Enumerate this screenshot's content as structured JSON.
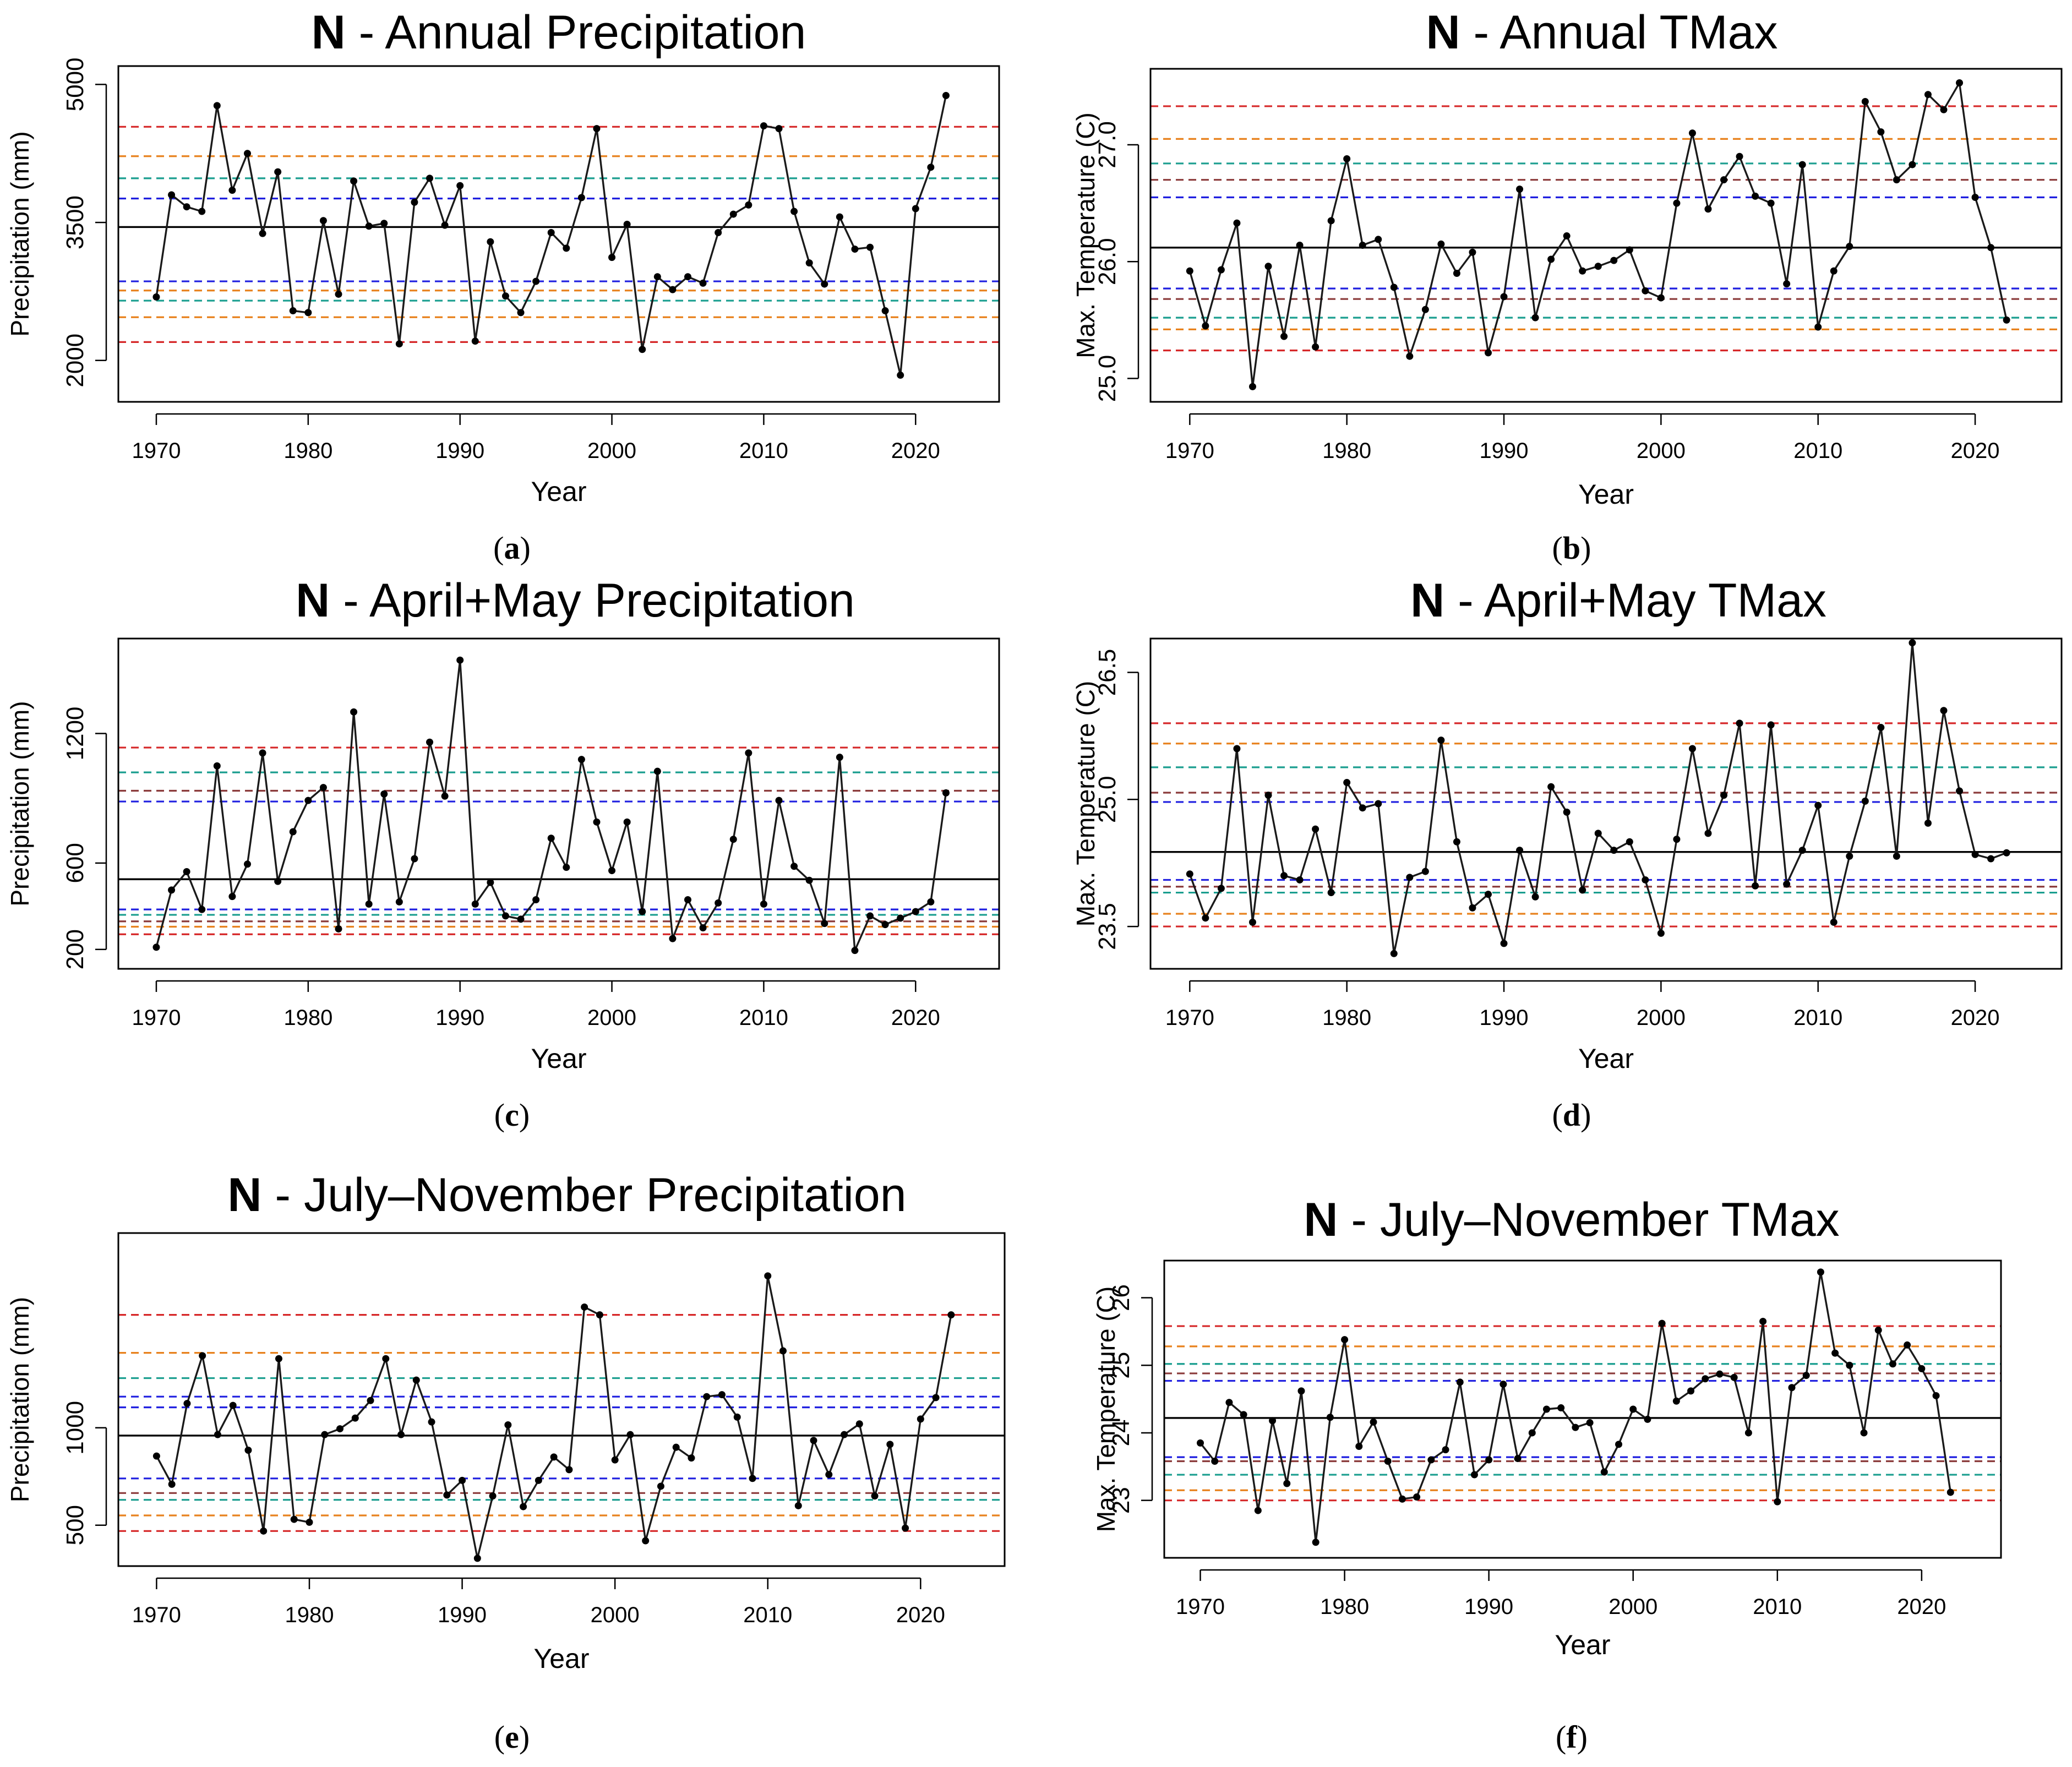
{
  "chart_data": [
    {
      "type": "line",
      "panel": "(a)",
      "title_bold": "N",
      "title_rest": " - Annual Precipitation",
      "xlabel": "Year",
      "ylabel": "Precipitation (mm)",
      "xlim": [
        1967.5,
        2025.5
      ],
      "ylim": [
        1550,
        5200
      ],
      "xticks": [
        1970,
        1980,
        1990,
        2000,
        2010,
        2020
      ],
      "xtick_labels": [
        "1970",
        "1980",
        "1990",
        "2000",
        "2010",
        "2020"
      ],
      "yticks": [
        2000,
        3500,
        5000
      ],
      "ytick_labels": [
        "2000",
        "3500",
        "5000"
      ],
      "x": [
        1970,
        1971,
        1972,
        1973,
        1974,
        1975,
        1976,
        1977,
        1978,
        1979,
        1980,
        1981,
        1982,
        1983,
        1984,
        1985,
        1986,
        1987,
        1988,
        1989,
        1990,
        1991,
        1992,
        1993,
        1994,
        1995,
        1996,
        1997,
        1998,
        1999,
        2000,
        2001,
        2002,
        2003,
        2004,
        2005,
        2006,
        2007,
        2008,
        2009,
        2010,
        2011,
        2012,
        2013,
        2014,
        2015,
        2016,
        2017,
        2018,
        2019,
        2020,
        2021,
        2022
      ],
      "values": [
        2690,
        3800,
        3670,
        3620,
        4770,
        3850,
        4250,
        3380,
        4050,
        2540,
        2520,
        3520,
        2720,
        3950,
        3460,
        3490,
        2180,
        3720,
        3980,
        3470,
        3900,
        2210,
        3290,
        2700,
        2520,
        2860,
        3390,
        3220,
        3770,
        4520,
        3120,
        3480,
        2120,
        2910,
        2770,
        2910,
        2840,
        3390,
        3590,
        3690,
        4550,
        4520,
        3620,
        3060,
        2830,
        3560,
        3210,
        3230,
        2540,
        1840,
        3650,
        4100,
        4880
      ],
      "ref_lines": [
        {
          "value": 3450,
          "color": "#000000",
          "dashed": false
        },
        {
          "value": 4540,
          "color": "#d62728",
          "dashed": true
        },
        {
          "value": 4220,
          "color": "#e8821e",
          "dashed": true
        },
        {
          "value": 3980,
          "color": "#1a9e8f",
          "dashed": true
        },
        {
          "value": 3760,
          "color": "#1f1fe0",
          "dashed": true
        },
        {
          "value": 2860,
          "color": "#1f1fe0",
          "dashed": true
        },
        {
          "value": 2760,
          "color": "#e8821e",
          "dashed": true
        },
        {
          "value": 2650,
          "color": "#1a9e8f",
          "dashed": true
        },
        {
          "value": 2470,
          "color": "#e8821e",
          "dashed": true
        },
        {
          "value": 2200,
          "color": "#d62728",
          "dashed": true
        }
      ]
    },
    {
      "type": "line",
      "panel": "(b)",
      "title_bold": "N",
      "title_rest": " - Annual TMax",
      "xlabel": "Year",
      "ylabel": "Max. Temperature (C)",
      "xlim": [
        1967.5,
        2025.5
      ],
      "ylim": [
        24.8,
        27.65
      ],
      "xticks": [
        1970,
        1980,
        1990,
        2000,
        2010,
        2020
      ],
      "xtick_labels": [
        "1970",
        "1980",
        "1990",
        "2000",
        "2010",
        "2020"
      ],
      "yticks": [
        25.0,
        26.0,
        27.0
      ],
      "ytick_labels": [
        "25.0",
        "26.0",
        "27.0"
      ],
      "x": [
        1970,
        1971,
        1972,
        1973,
        1974,
        1975,
        1976,
        1977,
        1978,
        1979,
        1980,
        1981,
        1982,
        1983,
        1984,
        1985,
        1986,
        1987,
        1988,
        1989,
        1990,
        1991,
        1992,
        1993,
        1994,
        1995,
        1996,
        1997,
        1998,
        1999,
        2000,
        2001,
        2002,
        2003,
        2004,
        2005,
        2006,
        2007,
        2008,
        2009,
        2010,
        2011,
        2012,
        2013,
        2014,
        2015,
        2016,
        2017,
        2018,
        2019,
        2020,
        2021,
        2022
      ],
      "values": [
        25.92,
        25.45,
        25.93,
        26.33,
        24.93,
        25.96,
        25.36,
        26.14,
        25.27,
        26.35,
        26.88,
        26.14,
        26.19,
        25.78,
        25.19,
        25.59,
        26.15,
        25.9,
        26.08,
        25.22,
        25.7,
        26.62,
        25.52,
        26.02,
        26.22,
        25.92,
        25.96,
        26.01,
        26.1,
        25.75,
        25.69,
        26.5,
        27.1,
        26.45,
        26.7,
        26.9,
        26.56,
        26.5,
        25.81,
        26.83,
        25.44,
        25.92,
        26.13,
        27.37,
        27.11,
        26.7,
        26.83,
        27.43,
        27.3,
        27.53,
        26.55,
        26.12,
        25.5
      ],
      "ref_lines": [
        {
          "value": 26.12,
          "color": "#000000",
          "dashed": false
        },
        {
          "value": 27.33,
          "color": "#d62728",
          "dashed": true
        },
        {
          "value": 27.05,
          "color": "#e8821e",
          "dashed": true
        },
        {
          "value": 26.84,
          "color": "#1a9e8f",
          "dashed": true
        },
        {
          "value": 26.7,
          "color": "#8b3a3a",
          "dashed": true
        },
        {
          "value": 26.55,
          "color": "#1f1fe0",
          "dashed": true
        },
        {
          "value": 25.77,
          "color": "#1f1fe0",
          "dashed": true
        },
        {
          "value": 25.68,
          "color": "#8b3a3a",
          "dashed": true
        },
        {
          "value": 25.52,
          "color": "#1a9e8f",
          "dashed": true
        },
        {
          "value": 25.42,
          "color": "#e8821e",
          "dashed": true
        },
        {
          "value": 25.24,
          "color": "#d62728",
          "dashed": true
        }
      ]
    },
    {
      "type": "line",
      "panel": "(c)",
      "title_bold": "N",
      "title_rest": " - April+May Precipitation",
      "xlabel": "Year",
      "ylabel": "Precipitation (mm)",
      "xlim": [
        1967.5,
        2025.5
      ],
      "ylim": [
        110,
        1640
      ],
      "xticks": [
        1970,
        1980,
        1990,
        2000,
        2010,
        2020
      ],
      "xtick_labels": [
        "1970",
        "1980",
        "1990",
        "2000",
        "2010",
        "2020"
      ],
      "yticks": [
        200,
        600,
        1200
      ],
      "ytick_labels": [
        "200",
        "600",
        "1200"
      ],
      "x": [
        1970,
        1971,
        1972,
        1973,
        1974,
        1975,
        1976,
        1977,
        1978,
        1979,
        1980,
        1981,
        1982,
        1983,
        1984,
        1985,
        1986,
        1987,
        1988,
        1989,
        1990,
        1991,
        1992,
        1993,
        1994,
        1995,
        1996,
        1997,
        1998,
        1999,
        2000,
        2001,
        2002,
        2003,
        2004,
        2005,
        2006,
        2007,
        2008,
        2009,
        2010,
        2011,
        2012,
        2013,
        2014,
        2015,
        2016,
        2017,
        2018,
        2019,
        2020,
        2021,
        2022
      ],
      "values": [
        210,
        475,
        560,
        385,
        1050,
        445,
        595,
        1110,
        515,
        745,
        890,
        950,
        295,
        1300,
        410,
        920,
        420,
        620,
        1160,
        910,
        1540,
        410,
        510,
        355,
        340,
        430,
        715,
        580,
        1080,
        790,
        565,
        790,
        375,
        1025,
        250,
        430,
        300,
        415,
        710,
        1110,
        410,
        890,
        585,
        520,
        320,
        1090,
        195,
        355,
        315,
        345,
        375,
        420,
        925
      ],
      "ref_lines": [
        {
          "value": 525,
          "color": "#000000",
          "dashed": false
        },
        {
          "value": 1135,
          "color": "#d62728",
          "dashed": true
        },
        {
          "value": 1020,
          "color": "#1a9e8f",
          "dashed": true
        },
        {
          "value": 935,
          "color": "#8b3a3a",
          "dashed": true
        },
        {
          "value": 885,
          "color": "#1f1fe0",
          "dashed": true
        },
        {
          "value": 385,
          "color": "#1f1fe0",
          "dashed": true
        },
        {
          "value": 360,
          "color": "#1a9e8f",
          "dashed": true
        },
        {
          "value": 330,
          "color": "#8b3a3a",
          "dashed": true
        },
        {
          "value": 305,
          "color": "#e8821e",
          "dashed": true
        },
        {
          "value": 270,
          "color": "#d62728",
          "dashed": true
        }
      ]
    },
    {
      "type": "line",
      "panel": "(d)",
      "title_bold": "N",
      "title_rest": " - April+May TMax",
      "xlabel": "Year",
      "ylabel": "Max. Temperature (C)",
      "xlim": [
        1967.5,
        2025.5
      ],
      "ylim": [
        23.0,
        26.9
      ],
      "xticks": [
        1970,
        1980,
        1990,
        2000,
        2010,
        2020
      ],
      "xtick_labels": [
        "1970",
        "1980",
        "1990",
        "2000",
        "2010",
        "2020"
      ],
      "yticks": [
        23.5,
        25.0,
        26.5
      ],
      "ytick_labels": [
        "23.5",
        "25.0",
        "26.5"
      ],
      "x": [
        1970,
        1971,
        1972,
        1973,
        1974,
        1975,
        1976,
        1977,
        1978,
        1979,
        1980,
        1981,
        1982,
        1983,
        1984,
        1985,
        1986,
        1987,
        1988,
        1989,
        1990,
        1991,
        1992,
        1993,
        1994,
        1995,
        1996,
        1997,
        1998,
        1999,
        2000,
        2001,
        2002,
        2003,
        2004,
        2005,
        2006,
        2007,
        2008,
        2009,
        2010,
        2011,
        2012,
        2013,
        2014,
        2015,
        2016,
        2017,
        2018,
        2019,
        2020,
        2021,
        2022
      ],
      "values": [
        24.12,
        23.6,
        23.95,
        25.6,
        23.55,
        25.05,
        24.1,
        24.05,
        24.65,
        23.9,
        25.2,
        24.9,
        24.95,
        23.18,
        24.08,
        24.15,
        25.7,
        24.5,
        23.72,
        23.88,
        23.3,
        24.4,
        23.85,
        25.15,
        24.85,
        23.93,
        24.6,
        24.4,
        24.5,
        24.05,
        23.42,
        24.53,
        25.6,
        24.6,
        25.05,
        25.9,
        23.98,
        25.88,
        24.0,
        24.4,
        24.93,
        23.55,
        24.33,
        24.98,
        25.85,
        24.33,
        26.85,
        24.72,
        26.05,
        25.1,
        24.35,
        24.3,
        24.37
      ],
      "ref_lines": [
        {
          "value": 24.38,
          "color": "#000000",
          "dashed": false
        },
        {
          "value": 25.9,
          "color": "#d62728",
          "dashed": true
        },
        {
          "value": 25.66,
          "color": "#e8821e",
          "dashed": true
        },
        {
          "value": 25.38,
          "color": "#1a9e8f",
          "dashed": true
        },
        {
          "value": 25.08,
          "color": "#8b3a3a",
          "dashed": true
        },
        {
          "value": 24.97,
          "color": "#1f1fe0",
          "dashed": true
        },
        {
          "value": 24.05,
          "color": "#1f1fe0",
          "dashed": true
        },
        {
          "value": 23.97,
          "color": "#8b3a3a",
          "dashed": true
        },
        {
          "value": 23.9,
          "color": "#1a9e8f",
          "dashed": true
        },
        {
          "value": 23.65,
          "color": "#e8821e",
          "dashed": true
        },
        {
          "value": 23.5,
          "color": "#d62728",
          "dashed": true
        }
      ]
    },
    {
      "type": "line",
      "panel": "(e)",
      "title_bold": "N",
      "title_rest": " - July–November Precipitation",
      "xlabel": "Year",
      "ylabel": "Precipitation (mm)",
      "xlim": [
        1967.5,
        2025.5
      ],
      "ylim": [
        290,
        2000
      ],
      "xticks": [
        1970,
        1980,
        1990,
        2000,
        2010,
        2020
      ],
      "xtick_labels": [
        "1970",
        "1980",
        "1990",
        "2000",
        "2010",
        "2020"
      ],
      "yticks": [
        500,
        1000
      ],
      "ytick_labels": [
        "500",
        "1000"
      ],
      "x": [
        1970,
        1971,
        1972,
        1973,
        1974,
        1975,
        1976,
        1977,
        1978,
        1979,
        1980,
        1981,
        1982,
        1983,
        1984,
        1985,
        1986,
        1987,
        1988,
        1989,
        1990,
        1991,
        1992,
        1993,
        1994,
        1995,
        1996,
        1997,
        1998,
        1999,
        2000,
        2001,
        2002,
        2003,
        2004,
        2005,
        2006,
        2007,
        2008,
        2009,
        2010,
        2011,
        2012,
        2013,
        2014,
        2015,
        2016,
        2017,
        2018,
        2019,
        2020,
        2021,
        2022
      ],
      "values": [
        855,
        710,
        1125,
        1370,
        965,
        1115,
        885,
        470,
        1355,
        530,
        515,
        965,
        995,
        1050,
        1140,
        1355,
        965,
        1245,
        1030,
        655,
        730,
        330,
        650,
        1015,
        595,
        730,
        850,
        785,
        1620,
        1580,
        835,
        965,
        420,
        700,
        900,
        845,
        1160,
        1170,
        1055,
        740,
        1780,
        1395,
        600,
        935,
        760,
        965,
        1020,
        650,
        915,
        485,
        1045,
        1155,
        1580
      ],
      "ref_lines": [
        {
          "value": 960,
          "color": "#000000",
          "dashed": false
        },
        {
          "value": 1580,
          "color": "#d62728",
          "dashed": true
        },
        {
          "value": 1385,
          "color": "#e8821e",
          "dashed": true
        },
        {
          "value": 1255,
          "color": "#1a9e8f",
          "dashed": true
        },
        {
          "value": 1160,
          "color": "#1f1fe0",
          "dashed": true
        },
        {
          "value": 1105,
          "color": "#1f1fe0",
          "dashed": true
        },
        {
          "value": 740,
          "color": "#1f1fe0",
          "dashed": true
        },
        {
          "value": 665,
          "color": "#8b3a3a",
          "dashed": true
        },
        {
          "value": 630,
          "color": "#1a9e8f",
          "dashed": true
        },
        {
          "value": 550,
          "color": "#e8821e",
          "dashed": true
        },
        {
          "value": 470,
          "color": "#d62728",
          "dashed": true
        }
      ]
    },
    {
      "type": "line",
      "panel": "(f)",
      "title_bold": "N",
      "title_rest": " - July–November TMax",
      "xlabel": "Year",
      "ylabel": "Max. Temperature (C)",
      "xlim": [
        1967.5,
        2025.5
      ],
      "ylim": [
        22.15,
        26.55
      ],
      "xticks": [
        1970,
        1980,
        1990,
        2000,
        2010,
        2020
      ],
      "xtick_labels": [
        "1970",
        "1980",
        "1990",
        "2000",
        "2010",
        "2020"
      ],
      "yticks": [
        23,
        24,
        25,
        26
      ],
      "ytick_labels": [
        "23",
        "24",
        "25",
        "26"
      ],
      "x": [
        1970,
        1971,
        1972,
        1973,
        1974,
        1975,
        1976,
        1977,
        1978,
        1979,
        1980,
        1981,
        1982,
        1983,
        1984,
        1985,
        1986,
        1987,
        1988,
        1989,
        1990,
        1991,
        1992,
        1993,
        1994,
        1995,
        1996,
        1997,
        1998,
        1999,
        2000,
        2001,
        2002,
        2003,
        2004,
        2005,
        2006,
        2007,
        2008,
        2009,
        2010,
        2011,
        2012,
        2013,
        2014,
        2015,
        2016,
        2017,
        2018,
        2019,
        2020,
        2021,
        2022
      ],
      "values": [
        23.85,
        23.58,
        24.45,
        24.27,
        22.85,
        24.18,
        23.25,
        24.62,
        22.38,
        24.23,
        25.38,
        23.8,
        24.16,
        23.58,
        23.02,
        23.05,
        23.6,
        23.75,
        24.75,
        23.38,
        23.6,
        24.72,
        23.62,
        24.0,
        24.35,
        24.37,
        24.08,
        24.15,
        23.42,
        23.83,
        24.35,
        24.2,
        25.62,
        24.47,
        24.62,
        24.8,
        24.87,
        24.82,
        24.0,
        25.65,
        22.98,
        24.67,
        24.85,
        26.38,
        25.18,
        25.0,
        24.0,
        25.52,
        25.02,
        25.3,
        24.95,
        24.55,
        23.12
      ],
      "ref_lines": [
        {
          "value": 24.22,
          "color": "#000000",
          "dashed": false
        },
        {
          "value": 25.58,
          "color": "#d62728",
          "dashed": true
        },
        {
          "value": 25.28,
          "color": "#e8821e",
          "dashed": true
        },
        {
          "value": 25.02,
          "color": "#1a9e8f",
          "dashed": true
        },
        {
          "value": 24.88,
          "color": "#8b3a3a",
          "dashed": true
        },
        {
          "value": 24.77,
          "color": "#1f1fe0",
          "dashed": true
        },
        {
          "value": 23.64,
          "color": "#1f1fe0",
          "dashed": true
        },
        {
          "value": 23.58,
          "color": "#8b3a3a",
          "dashed": true
        },
        {
          "value": 23.38,
          "color": "#1a9e8f",
          "dashed": true
        },
        {
          "value": 23.15,
          "color": "#e8821e",
          "dashed": true
        },
        {
          "value": 23.0,
          "color": "#d62728",
          "dashed": true
        }
      ]
    }
  ]
}
